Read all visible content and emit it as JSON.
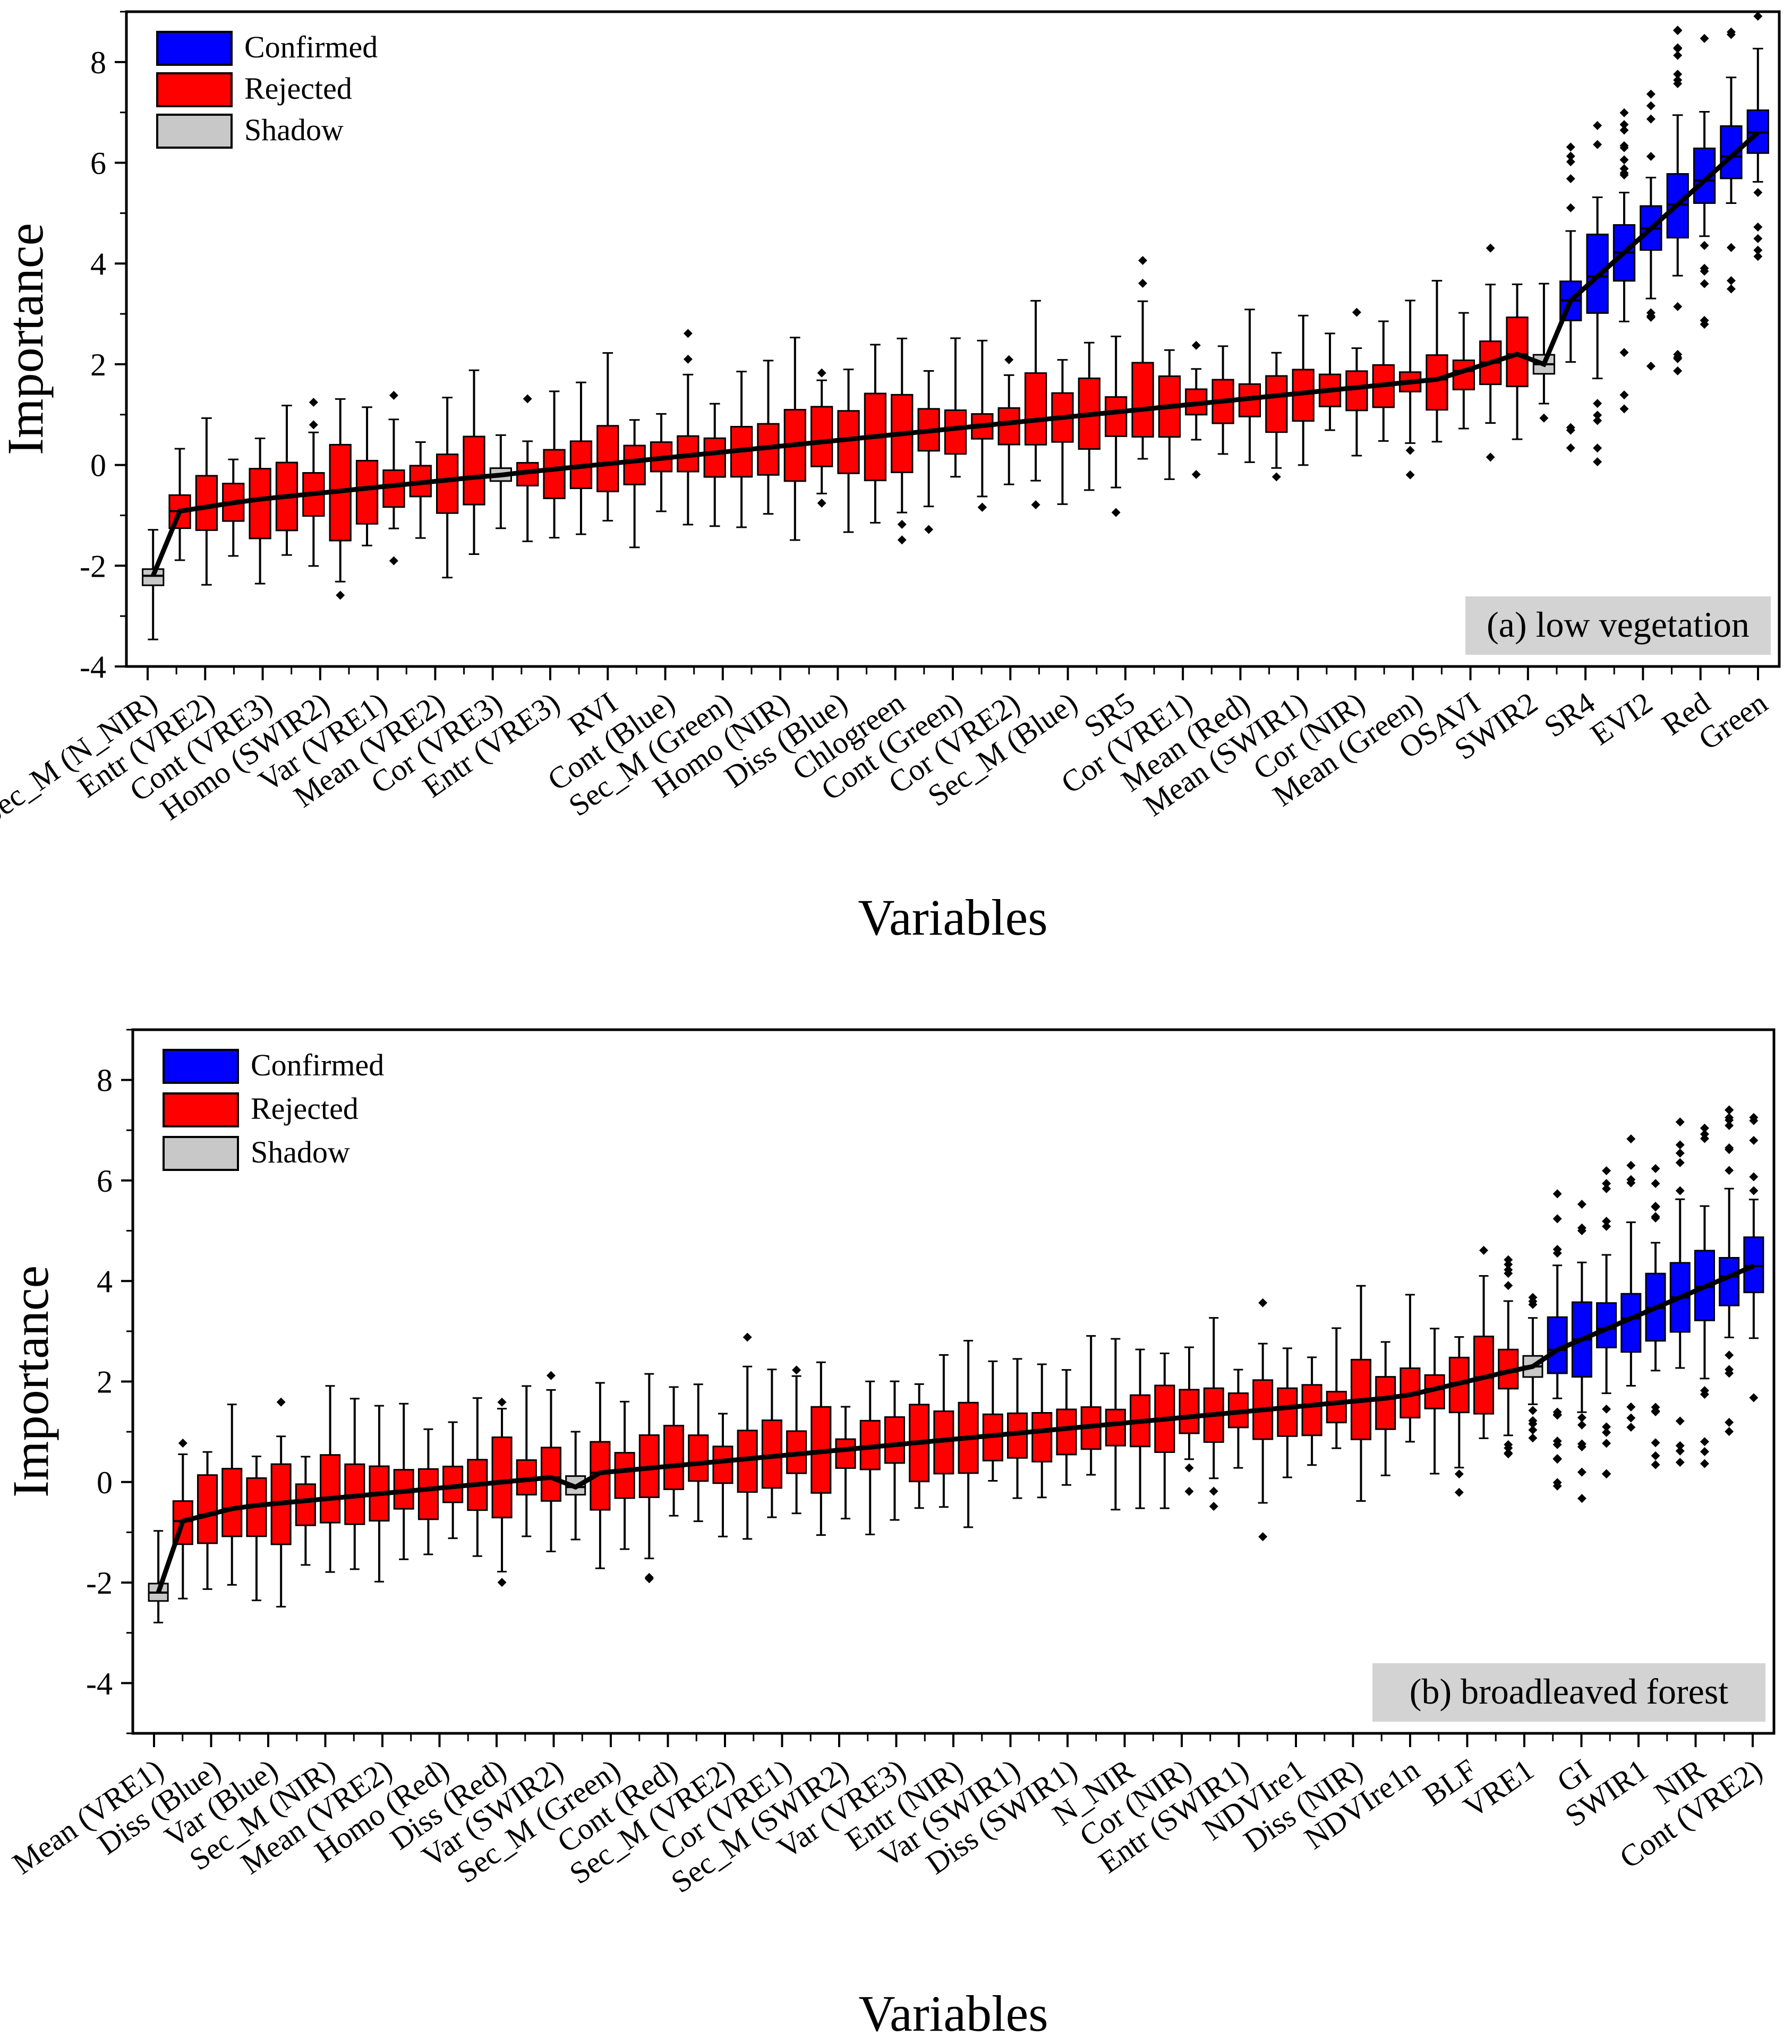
{
  "chart_data": [
    {
      "type": "box",
      "panel_label": "(a) low vegetation",
      "xlabel": "Variables",
      "ylabel": "Importance",
      "ylim": [
        -4,
        9
      ],
      "yticks": [
        -4,
        -2,
        0,
        2,
        4,
        6,
        8
      ],
      "legend": [
        {
          "label": "Confirmed",
          "color": "#0000ff"
        },
        {
          "label": "Rejected",
          "color": "#ff0000"
        },
        {
          "label": "Shadow",
          "color": "#c8c8c8"
        }
      ],
      "legend_position": "top-left",
      "box_count": 61,
      "x_labels": [
        "Sec_M (N_NIR)",
        "Entr (VRE2)",
        "Cont (VRE3)",
        "Homo (SWIR2)",
        "Var (VRE1)",
        "Mean (VRE2)",
        "Cor (VRE3)",
        "Entr (VRE3)",
        "RVI",
        "Cont (Blue)",
        "Sec_M (Green)",
        "Homo (NIR)",
        "Diss (Blue)",
        "Chlogreen",
        "Cont (Green)",
        "Cor (VRE2)",
        "Sec_M (Blue)",
        "SR5",
        "Cor (VRE1)",
        "Mean (Red)",
        "Mean (SWIR1)",
        "Cor (NIR)",
        "Mean (Green)",
        "OSAVI",
        "SWIR2",
        "SR4",
        "EVI2",
        "Red",
        "Green"
      ],
      "medians_approx": {
        "start": -1.0,
        "shadow_min": -2.2,
        "middle": 0.4,
        "shadow_mean": -0.2,
        "shadow_max": 2.0,
        "confirmed_range": [
          3.0,
          6.6
        ]
      }
    },
    {
      "type": "box",
      "panel_label": "(b) broadleaved forest",
      "xlabel": "Variables",
      "ylabel": "Importance",
      "ylim": [
        -5,
        9
      ],
      "yticks": [
        -4,
        -2,
        0,
        2,
        4,
        6,
        8
      ],
      "legend": [
        {
          "label": "Confirmed",
          "color": "#0000ff"
        },
        {
          "label": "Rejected",
          "color": "#ff0000"
        },
        {
          "label": "Shadow",
          "color": "#c8c8c8"
        }
      ],
      "legend_position": "top-left",
      "box_count": 66,
      "x_labels": [
        "Mean (VRE1)",
        "Diss (Blue)",
        "Var (Blue)",
        "Sec_M (NIR)",
        "Mean (VRE2)",
        "Homo (Red)",
        "Diss (Red)",
        "Var (SWIR2)",
        "Sec_M (Green)",
        "Cont (Red)",
        "Sec_M (VRE2)",
        "Cor (VRE1)",
        "Sec_M (SWIR2)",
        "Var (VRE3)",
        "Entr (NIR)",
        "Var (SWIR1)",
        "Diss (SWIR1)",
        "N_NIR",
        "Cor (NIR)",
        "Entr (SWIR1)",
        "NDVIre1",
        "Diss (NIR)",
        "NDVIre1n",
        "BLF",
        "VRE1",
        "GI",
        "SWIR1",
        "NIR",
        "Cont (VRE2)"
      ],
      "medians_approx": {
        "start": -0.9,
        "shadow_min": -2.2,
        "middle": 0.6,
        "shadow_mean": -0.1,
        "shadow_max": 2.3,
        "confirmed_range": [
          2.4,
          4.3
        ]
      }
    }
  ]
}
